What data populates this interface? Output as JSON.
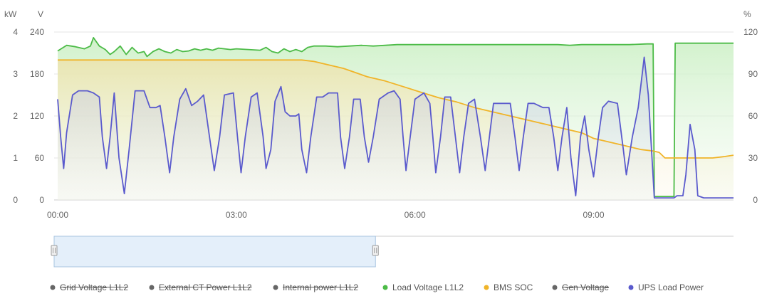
{
  "chart_data": {
    "type": "area",
    "axes": {
      "left_power": {
        "unit": "kW",
        "ticks": [
          "0",
          "1",
          "2",
          "3",
          "4"
        ],
        "range": [
          0,
          4
        ]
      },
      "left_voltage": {
        "unit": "V",
        "ticks": [
          "0",
          "60",
          "120",
          "180",
          "240"
        ],
        "range": [
          0,
          240
        ]
      },
      "right_percent": {
        "unit": "%",
        "ticks": [
          "0",
          "30",
          "60",
          "90",
          "120"
        ],
        "range": [
          0,
          120
        ]
      },
      "x": {
        "ticks": [
          "00:00",
          "03:00",
          "06:00",
          "09:00"
        ],
        "range_hours": [
          0,
          11.35
        ]
      }
    },
    "grid": true,
    "legend_position": "bottom",
    "legend": [
      {
        "name": "Grid Voltage L1L2",
        "color": "#666666",
        "hidden": true
      },
      {
        "name": "External CT Power L1L2",
        "color": "#666666",
        "hidden": true
      },
      {
        "name": "Internal power L1L2",
        "color": "#666666",
        "hidden": true
      },
      {
        "name": "Load Voltage L1L2",
        "color": "#4cbb47",
        "hidden": false
      },
      {
        "name": "BMS SOC",
        "color": "#f0b429",
        "hidden": false
      },
      {
        "name": "Gen Voltage",
        "color": "#666666",
        "hidden": true
      },
      {
        "name": "UPS Load Power",
        "color": "#5a5acd",
        "hidden": false
      }
    ],
    "series": [
      {
        "name": "Load Voltage L1L2",
        "axis": "left_voltage",
        "color": "#4cbb47",
        "points": [
          [
            0.0,
            213
          ],
          [
            0.15,
            221
          ],
          [
            0.3,
            219
          ],
          [
            0.45,
            216
          ],
          [
            0.55,
            220
          ],
          [
            0.6,
            232
          ],
          [
            0.7,
            220
          ],
          [
            0.8,
            215
          ],
          [
            0.88,
            208
          ],
          [
            0.95,
            212
          ],
          [
            1.05,
            220
          ],
          [
            1.15,
            208
          ],
          [
            1.25,
            218
          ],
          [
            1.35,
            210
          ],
          [
            1.45,
            212
          ],
          [
            1.5,
            205
          ],
          [
            1.6,
            212
          ],
          [
            1.7,
            216
          ],
          [
            1.8,
            212
          ],
          [
            1.9,
            210
          ],
          [
            2.0,
            215
          ],
          [
            2.1,
            212
          ],
          [
            2.2,
            213
          ],
          [
            2.3,
            216
          ],
          [
            2.4,
            214
          ],
          [
            2.5,
            216
          ],
          [
            2.6,
            214
          ],
          [
            2.7,
            217
          ],
          [
            2.8,
            216
          ],
          [
            2.9,
            215
          ],
          [
            3.0,
            216
          ],
          [
            3.2,
            215
          ],
          [
            3.4,
            214
          ],
          [
            3.5,
            218
          ],
          [
            3.6,
            212
          ],
          [
            3.7,
            210
          ],
          [
            3.8,
            216
          ],
          [
            3.9,
            212
          ],
          [
            4.0,
            215
          ],
          [
            4.1,
            212
          ],
          [
            4.2,
            218
          ],
          [
            4.3,
            220
          ],
          [
            4.5,
            220
          ],
          [
            4.7,
            219
          ],
          [
            4.9,
            220
          ],
          [
            5.1,
            221
          ],
          [
            5.3,
            220
          ],
          [
            5.5,
            221
          ],
          [
            5.7,
            222
          ],
          [
            5.9,
            222
          ],
          [
            6.1,
            222
          ],
          [
            6.3,
            222
          ],
          [
            6.6,
            222
          ],
          [
            6.9,
            222
          ],
          [
            7.2,
            222
          ],
          [
            7.5,
            222
          ],
          [
            7.8,
            222
          ],
          [
            8.1,
            222
          ],
          [
            8.4,
            222
          ],
          [
            8.6,
            221
          ],
          [
            8.8,
            222
          ],
          [
            9.0,
            222
          ],
          [
            9.2,
            222
          ],
          [
            9.4,
            222
          ],
          [
            9.6,
            222
          ],
          [
            9.9,
            223
          ],
          [
            10.0,
            223
          ],
          [
            10.02,
            5
          ],
          [
            10.35,
            5
          ],
          [
            10.37,
            224
          ],
          [
            10.6,
            224
          ],
          [
            10.9,
            224
          ],
          [
            11.1,
            224
          ],
          [
            11.35,
            224
          ]
        ]
      },
      {
        "name": "BMS SOC",
        "axis": "right_percent",
        "color": "#f0b429",
        "points": [
          [
            0.0,
            100
          ],
          [
            1.0,
            100
          ],
          [
            2.0,
            100
          ],
          [
            3.0,
            100
          ],
          [
            3.6,
            100
          ],
          [
            4.1,
            100
          ],
          [
            4.3,
            99
          ],
          [
            4.5,
            97
          ],
          [
            4.8,
            94
          ],
          [
            5.0,
            91
          ],
          [
            5.2,
            88
          ],
          [
            5.5,
            85
          ],
          [
            5.8,
            81
          ],
          [
            6.1,
            77
          ],
          [
            6.4,
            73
          ],
          [
            6.7,
            70
          ],
          [
            7.0,
            66
          ],
          [
            7.3,
            63
          ],
          [
            7.6,
            60
          ],
          [
            7.9,
            57
          ],
          [
            8.2,
            54
          ],
          [
            8.5,
            51
          ],
          [
            8.8,
            48
          ],
          [
            9.0,
            44
          ],
          [
            9.2,
            42
          ],
          [
            9.5,
            39
          ],
          [
            9.8,
            36
          ],
          [
            10.0,
            35
          ],
          [
            10.1,
            34
          ],
          [
            10.2,
            30
          ],
          [
            10.5,
            30
          ],
          [
            10.8,
            30
          ],
          [
            11.0,
            30
          ],
          [
            11.2,
            31
          ],
          [
            11.35,
            32
          ]
        ]
      },
      {
        "name": "UPS Load Power",
        "axis": "left_power",
        "color": "#5a5acd",
        "points": [
          [
            0.0,
            2.4
          ],
          [
            0.05,
            1.5
          ],
          [
            0.1,
            0.75
          ],
          [
            0.15,
            1.6
          ],
          [
            0.25,
            2.5
          ],
          [
            0.35,
            2.6
          ],
          [
            0.5,
            2.6
          ],
          [
            0.6,
            2.55
          ],
          [
            0.7,
            2.45
          ],
          [
            0.75,
            1.5
          ],
          [
            0.82,
            0.75
          ],
          [
            0.88,
            1.5
          ],
          [
            0.95,
            2.55
          ],
          [
            1.03,
            1.0
          ],
          [
            1.12,
            0.15
          ],
          [
            1.2,
            1.2
          ],
          [
            1.3,
            2.6
          ],
          [
            1.45,
            2.6
          ],
          [
            1.55,
            2.2
          ],
          [
            1.65,
            2.2
          ],
          [
            1.72,
            2.25
          ],
          [
            1.8,
            1.5
          ],
          [
            1.88,
            0.65
          ],
          [
            1.95,
            1.5
          ],
          [
            2.05,
            2.4
          ],
          [
            2.15,
            2.65
          ],
          [
            2.25,
            2.25
          ],
          [
            2.35,
            2.35
          ],
          [
            2.45,
            2.5
          ],
          [
            2.55,
            1.5
          ],
          [
            2.63,
            0.7
          ],
          [
            2.72,
            1.5
          ],
          [
            2.8,
            2.5
          ],
          [
            2.95,
            2.55
          ],
          [
            3.02,
            1.5
          ],
          [
            3.08,
            0.65
          ],
          [
            3.15,
            1.5
          ],
          [
            3.25,
            2.45
          ],
          [
            3.35,
            2.55
          ],
          [
            3.45,
            1.5
          ],
          [
            3.5,
            0.75
          ],
          [
            3.58,
            1.2
          ],
          [
            3.65,
            2.35
          ],
          [
            3.75,
            2.7
          ],
          [
            3.82,
            2.1
          ],
          [
            3.9,
            2.0
          ],
          [
            4.0,
            2.0
          ],
          [
            4.05,
            2.05
          ],
          [
            4.1,
            1.2
          ],
          [
            4.18,
            0.65
          ],
          [
            4.25,
            1.5
          ],
          [
            4.35,
            2.45
          ],
          [
            4.45,
            2.45
          ],
          [
            4.55,
            2.55
          ],
          [
            4.7,
            2.55
          ],
          [
            4.75,
            1.5
          ],
          [
            4.82,
            0.75
          ],
          [
            4.9,
            1.5
          ],
          [
            4.97,
            2.4
          ],
          [
            5.08,
            2.4
          ],
          [
            5.15,
            1.5
          ],
          [
            5.22,
            0.9
          ],
          [
            5.3,
            1.5
          ],
          [
            5.4,
            2.4
          ],
          [
            5.55,
            2.55
          ],
          [
            5.65,
            2.6
          ],
          [
            5.75,
            2.4
          ],
          [
            5.8,
            1.5
          ],
          [
            5.85,
            0.7
          ],
          [
            5.92,
            1.5
          ],
          [
            6.0,
            2.4
          ],
          [
            6.15,
            2.55
          ],
          [
            6.25,
            2.3
          ],
          [
            6.3,
            1.5
          ],
          [
            6.35,
            0.65
          ],
          [
            6.43,
            1.5
          ],
          [
            6.5,
            2.45
          ],
          [
            6.6,
            2.45
          ],
          [
            6.68,
            1.5
          ],
          [
            6.75,
            0.65
          ],
          [
            6.82,
            1.5
          ],
          [
            6.9,
            2.3
          ],
          [
            7.0,
            2.4
          ],
          [
            7.1,
            1.5
          ],
          [
            7.18,
            0.7
          ],
          [
            7.25,
            1.5
          ],
          [
            7.32,
            2.3
          ],
          [
            7.45,
            2.3
          ],
          [
            7.6,
            2.3
          ],
          [
            7.68,
            1.5
          ],
          [
            7.75,
            0.7
          ],
          [
            7.82,
            1.5
          ],
          [
            7.9,
            2.3
          ],
          [
            8.0,
            2.3
          ],
          [
            8.15,
            2.2
          ],
          [
            8.25,
            2.2
          ],
          [
            8.33,
            1.5
          ],
          [
            8.4,
            0.7
          ],
          [
            8.47,
            1.5
          ],
          [
            8.55,
            2.2
          ],
          [
            8.62,
            1.0
          ],
          [
            8.7,
            0.1
          ],
          [
            8.78,
            1.5
          ],
          [
            8.85,
            2.0
          ],
          [
            8.92,
            1.2
          ],
          [
            9.0,
            0.55
          ],
          [
            9.08,
            1.5
          ],
          [
            9.15,
            2.2
          ],
          [
            9.25,
            2.35
          ],
          [
            9.4,
            2.3
          ],
          [
            9.5,
            1.2
          ],
          [
            9.55,
            0.6
          ],
          [
            9.65,
            1.5
          ],
          [
            9.75,
            2.2
          ],
          [
            9.85,
            3.4
          ],
          [
            9.92,
            2.5
          ],
          [
            10.02,
            0.05
          ],
          [
            10.3,
            0.05
          ],
          [
            10.35,
            0.05
          ],
          [
            10.4,
            0.1
          ],
          [
            10.5,
            0.1
          ],
          [
            10.55,
            0.6
          ],
          [
            10.62,
            1.8
          ],
          [
            10.7,
            1.2
          ],
          [
            10.75,
            0.1
          ],
          [
            10.85,
            0.05
          ],
          [
            11.0,
            0.05
          ],
          [
            11.35,
            0.05
          ]
        ]
      }
    ]
  },
  "navigator": {
    "range_start_fraction": 0.0,
    "range_end_fraction": 0.473
  }
}
